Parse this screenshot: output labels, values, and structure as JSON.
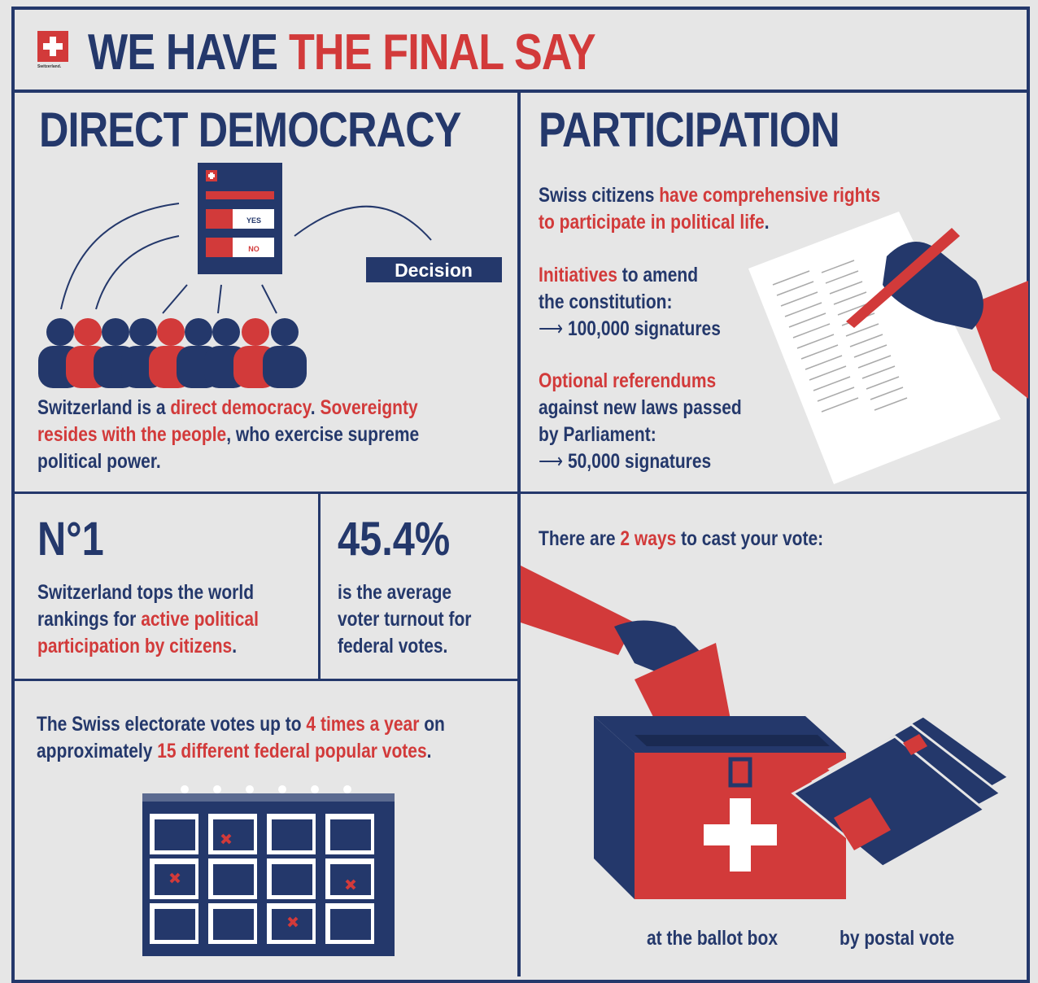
{
  "colors": {
    "navy": "#24386b",
    "red": "#d23a3a",
    "background": "#e6e6e6"
  },
  "header": {
    "logo_text": "Switzerland.",
    "title_part1": "WE HAVE ",
    "title_part2": "THE FINAL SAY"
  },
  "direct_democracy": {
    "title": "DIRECT DEMOCRACY",
    "ballot": {
      "yes": "YES",
      "no": "NO"
    },
    "decision": "Decision",
    "text": {
      "a": "Switzerland is a ",
      "b": "direct democracy",
      "c": ". ",
      "d": "Sovereignty",
      "e": "resides with the people",
      ",f": "",
      "f": ", who exercise supreme",
      "g": "political power."
    }
  },
  "participation": {
    "title": "PARTICIPATION",
    "intro": {
      "a": "Swiss citizens ",
      "b": "have comprehensive rights",
      "c": "to participate in political life",
      "d": "."
    },
    "initiatives": {
      "a": "Initiatives",
      "b": " to amend",
      "c": "the constitution:",
      "d": "100,000 signatures"
    },
    "referendums": {
      "a": "Optional referendums",
      "b": "against new laws passed",
      "c": "by Parliament:",
      "d": "50,000 signatures"
    }
  },
  "ranking": {
    "value": "N°1",
    "a": "Switzerland tops the world",
    "b": "rankings for ",
    "c": "active political",
    "d": "participation by citizens",
    "e": "."
  },
  "turnout": {
    "value": "45.4%",
    "a": "is the average",
    "b": "voter turnout for",
    "c": "federal votes."
  },
  "votes": {
    "a": "The Swiss electorate votes up to ",
    "b": "4 times a year",
    "c": " on",
    "d": "approximately ",
    "e": "15 different federal popular votes",
    "f": "."
  },
  "ways": {
    "a": "There are ",
    "b": "2 ways",
    "c": " to cast your vote:",
    "ballot_box": "at the ballot box",
    "postal": "by postal vote"
  }
}
